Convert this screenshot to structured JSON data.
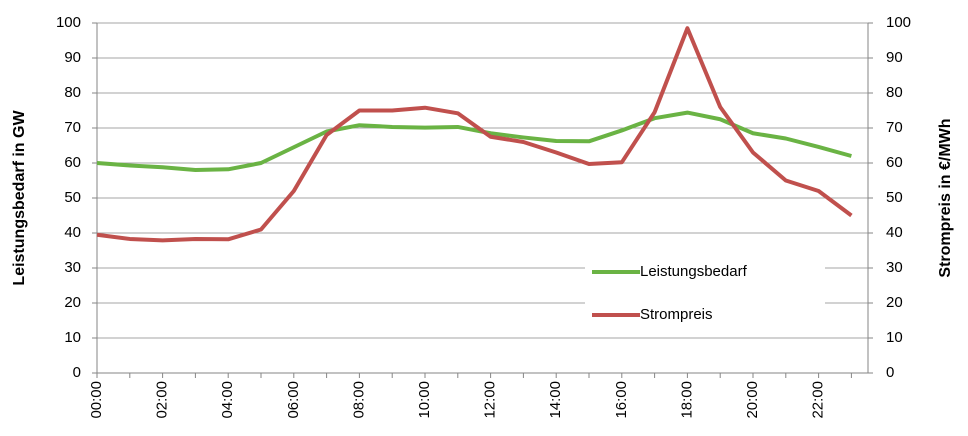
{
  "chart_data": {
    "type": "line",
    "y_label": "Leistungsbedarf in GW",
    "y2_label": "Strompreis in €/MWh",
    "categories": [
      "00:00",
      null,
      "02:00",
      null,
      "04:00",
      null,
      "06:00",
      null,
      "08:00",
      null,
      "10:00",
      null,
      "12:00",
      null,
      "14:00",
      null,
      "16:00",
      null,
      "18:00",
      null,
      "20:00",
      null,
      "22:00",
      null
    ],
    "series": [
      {
        "name": "Leistungsbedarf",
        "color": "#6ab344",
        "axis": "y",
        "values": [
          60,
          59.3,
          58.8,
          58,
          58.2,
          60,
          64.5,
          69,
          70.8,
          70.3,
          70.1,
          70.3,
          68.5,
          67.3,
          66.3,
          66.2,
          69.3,
          72.8,
          74.4,
          72.5,
          68.5,
          67,
          64.6,
          62
        ]
      },
      {
        "name": "Strompreis",
        "color": "#c0504d",
        "axis": "y2",
        "values": [
          39.5,
          38.3,
          37.9,
          38.3,
          38.2,
          41,
          52,
          68,
          75,
          75,
          75.8,
          74.2,
          67.5,
          66,
          63,
          59.7,
          60.2,
          74.5,
          98.5,
          76,
          63,
          55,
          52,
          45
        ]
      }
    ],
    "ylim": [
      0,
      100
    ],
    "yticks": [
      0,
      10,
      20,
      30,
      40,
      50,
      60,
      70,
      80,
      90,
      100
    ],
    "y2lim": [
      0,
      100
    ],
    "y2ticks": [
      0,
      10,
      20,
      30,
      40,
      50,
      60,
      70,
      80,
      90,
      100
    ],
    "grid": true
  }
}
